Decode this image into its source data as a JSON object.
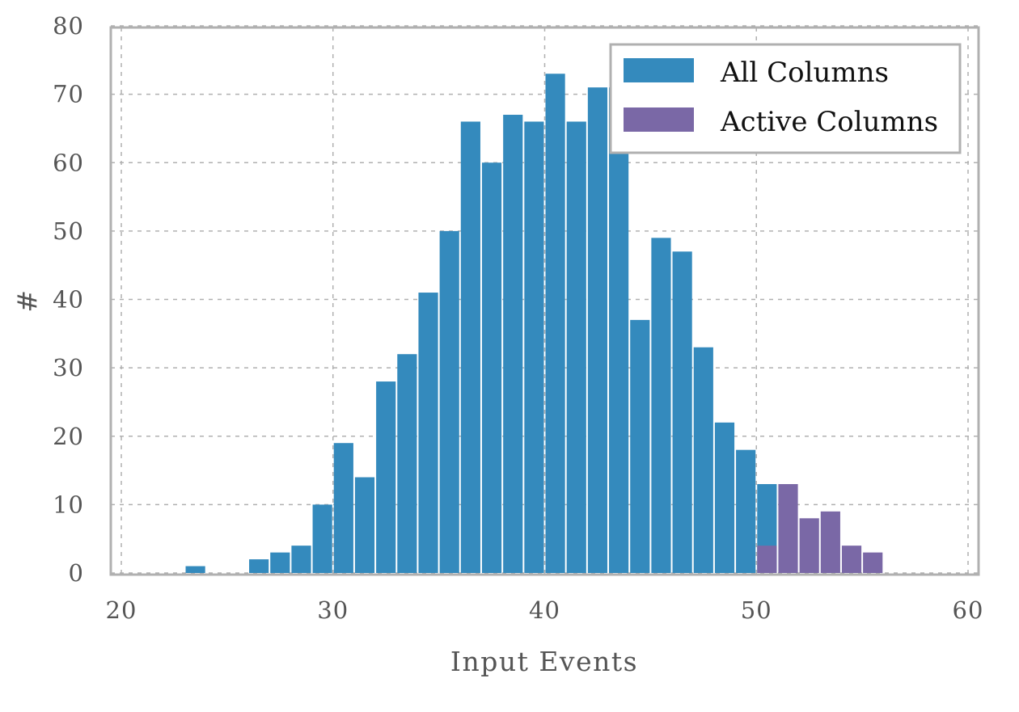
{
  "chart_data": {
    "type": "bar",
    "xlabel": "Input Events",
    "ylabel": "#",
    "xlim": [
      20,
      60
    ],
    "ylim": [
      0,
      80
    ],
    "xticks": [
      "20",
      "30",
      "40",
      "50",
      "60"
    ],
    "yticks": [
      "0",
      "10",
      "20",
      "30",
      "40",
      "50",
      "60",
      "70",
      "80"
    ],
    "grid": true,
    "legend_position": "top-right",
    "bin_width": 1,
    "series": [
      {
        "name": "All Columns",
        "color": "#348ABD",
        "x": [
          23,
          26,
          27,
          28,
          29,
          30,
          31,
          32,
          33,
          34,
          35,
          36,
          37,
          38,
          39,
          40,
          41,
          42,
          43,
          44,
          45,
          46,
          47,
          48,
          49,
          50
        ],
        "values": [
          1,
          2,
          3,
          4,
          10,
          19,
          14,
          28,
          32,
          41,
          50,
          66,
          60,
          67,
          66,
          73,
          66,
          71,
          71,
          37,
          49,
          47,
          33,
          22,
          18,
          13
        ]
      },
      {
        "name": "Active Columns",
        "color": "#7A68A6",
        "x": [
          50,
          51,
          52,
          53,
          54,
          55
        ],
        "values": [
          4,
          13,
          8,
          9,
          4,
          3
        ]
      }
    ]
  }
}
